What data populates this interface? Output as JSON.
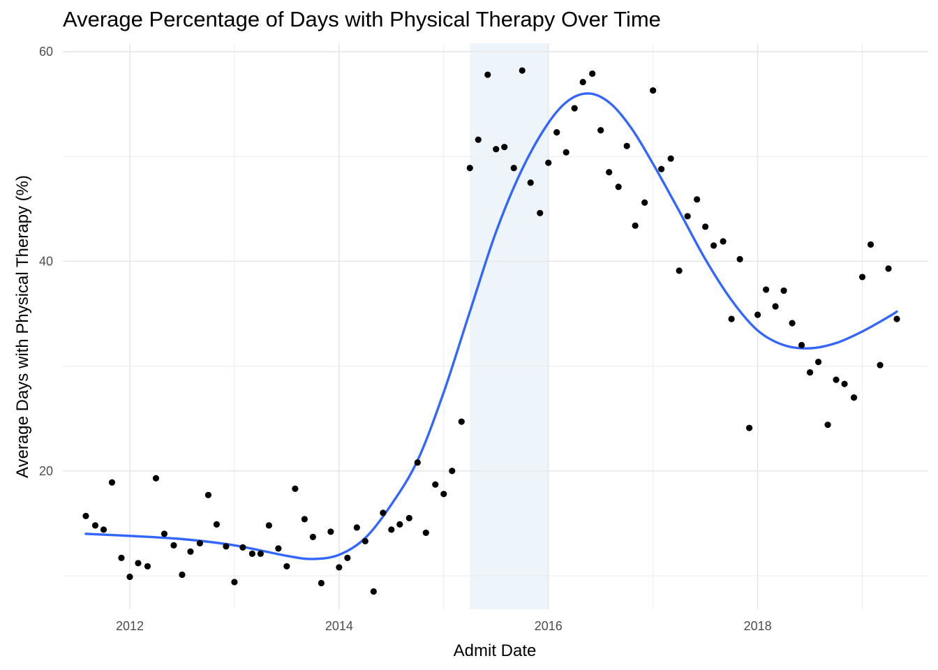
{
  "chart_data": {
    "type": "scatter",
    "title": "Average Percentage of Days with Physical Therapy Over Time",
    "xlabel": "Admit Date",
    "ylabel": "Average Days with Physical Therapy (%)",
    "xlim": [
      2011.36,
      2019.63
    ],
    "ylim": [
      6.8,
      60.8
    ],
    "x_ticks": [
      2012,
      2014,
      2016,
      2018
    ],
    "y_ticks": [
      20,
      40,
      60
    ],
    "grid": true,
    "legend": "none",
    "highlight_band": {
      "x_start": 2015.25,
      "x_end": 2016.0,
      "color": "#eef5fa"
    },
    "point_color": "#000000",
    "smooth_color": "#3366ff",
    "points": [
      {
        "x": 2011.58,
        "y": 15.7
      },
      {
        "x": 2011.67,
        "y": 14.8
      },
      {
        "x": 2011.75,
        "y": 14.4
      },
      {
        "x": 2011.83,
        "y": 18.9
      },
      {
        "x": 2011.92,
        "y": 11.7
      },
      {
        "x": 2012.0,
        "y": 9.9
      },
      {
        "x": 2012.08,
        "y": 11.2
      },
      {
        "x": 2012.17,
        "y": 10.9
      },
      {
        "x": 2012.25,
        "y": 19.3
      },
      {
        "x": 2012.33,
        "y": 14.0
      },
      {
        "x": 2012.42,
        "y": 12.9
      },
      {
        "x": 2012.5,
        "y": 10.1
      },
      {
        "x": 2012.58,
        "y": 12.3
      },
      {
        "x": 2012.67,
        "y": 13.1
      },
      {
        "x": 2012.75,
        "y": 17.7
      },
      {
        "x": 2012.83,
        "y": 14.9
      },
      {
        "x": 2012.92,
        "y": 12.8
      },
      {
        "x": 2013.0,
        "y": 9.4
      },
      {
        "x": 2013.08,
        "y": 12.7
      },
      {
        "x": 2013.17,
        "y": 12.1
      },
      {
        "x": 2013.25,
        "y": 12.1
      },
      {
        "x": 2013.33,
        "y": 14.8
      },
      {
        "x": 2013.42,
        "y": 12.6
      },
      {
        "x": 2013.5,
        "y": 10.9
      },
      {
        "x": 2013.58,
        "y": 18.3
      },
      {
        "x": 2013.67,
        "y": 15.4
      },
      {
        "x": 2013.75,
        "y": 13.7
      },
      {
        "x": 2013.83,
        "y": 9.3
      },
      {
        "x": 2013.92,
        "y": 14.2
      },
      {
        "x": 2014.0,
        "y": 10.8
      },
      {
        "x": 2014.08,
        "y": 11.7
      },
      {
        "x": 2014.17,
        "y": 14.6
      },
      {
        "x": 2014.25,
        "y": 13.3
      },
      {
        "x": 2014.33,
        "y": 8.5
      },
      {
        "x": 2014.42,
        "y": 16.0
      },
      {
        "x": 2014.5,
        "y": 14.4
      },
      {
        "x": 2014.58,
        "y": 14.9
      },
      {
        "x": 2014.67,
        "y": 15.5
      },
      {
        "x": 2014.75,
        "y": 20.8
      },
      {
        "x": 2014.83,
        "y": 14.1
      },
      {
        "x": 2014.92,
        "y": 18.7
      },
      {
        "x": 2015.0,
        "y": 17.8
      },
      {
        "x": 2015.08,
        "y": 20.0
      },
      {
        "x": 2015.17,
        "y": 24.7
      },
      {
        "x": 2015.25,
        "y": 48.9
      },
      {
        "x": 2015.33,
        "y": 51.6
      },
      {
        "x": 2015.42,
        "y": 57.8
      },
      {
        "x": 2015.5,
        "y": 50.7
      },
      {
        "x": 2015.58,
        "y": 50.9
      },
      {
        "x": 2015.67,
        "y": 48.9
      },
      {
        "x": 2015.75,
        "y": 58.2
      },
      {
        "x": 2015.83,
        "y": 47.5
      },
      {
        "x": 2015.92,
        "y": 44.6
      },
      {
        "x": 2016.0,
        "y": 49.4
      },
      {
        "x": 2016.08,
        "y": 52.3
      },
      {
        "x": 2016.17,
        "y": 50.4
      },
      {
        "x": 2016.25,
        "y": 54.6
      },
      {
        "x": 2016.33,
        "y": 57.1
      },
      {
        "x": 2016.42,
        "y": 57.9
      },
      {
        "x": 2016.5,
        "y": 52.5
      },
      {
        "x": 2016.58,
        "y": 48.5
      },
      {
        "x": 2016.67,
        "y": 47.1
      },
      {
        "x": 2016.75,
        "y": 51.0
      },
      {
        "x": 2016.83,
        "y": 43.4
      },
      {
        "x": 2016.92,
        "y": 45.6
      },
      {
        "x": 2017.0,
        "y": 56.3
      },
      {
        "x": 2017.08,
        "y": 48.8
      },
      {
        "x": 2017.17,
        "y": 49.8
      },
      {
        "x": 2017.25,
        "y": 39.1
      },
      {
        "x": 2017.33,
        "y": 44.3
      },
      {
        "x": 2017.42,
        "y": 45.9
      },
      {
        "x": 2017.5,
        "y": 43.3
      },
      {
        "x": 2017.58,
        "y": 41.5
      },
      {
        "x": 2017.67,
        "y": 41.9
      },
      {
        "x": 2017.75,
        "y": 34.5
      },
      {
        "x": 2017.83,
        "y": 40.2
      },
      {
        "x": 2017.92,
        "y": 24.1
      },
      {
        "x": 2018.0,
        "y": 34.9
      },
      {
        "x": 2018.08,
        "y": 37.3
      },
      {
        "x": 2018.17,
        "y": 35.7
      },
      {
        "x": 2018.25,
        "y": 37.2
      },
      {
        "x": 2018.33,
        "y": 34.1
      },
      {
        "x": 2018.42,
        "y": 32.0
      },
      {
        "x": 2018.5,
        "y": 29.4
      },
      {
        "x": 2018.58,
        "y": 30.4
      },
      {
        "x": 2018.67,
        "y": 24.4
      },
      {
        "x": 2018.75,
        "y": 28.7
      },
      {
        "x": 2018.83,
        "y": 28.3
      },
      {
        "x": 2018.92,
        "y": 27.0
      },
      {
        "x": 2019.0,
        "y": 38.5
      },
      {
        "x": 2019.08,
        "y": 41.6
      },
      {
        "x": 2019.17,
        "y": 30.1
      },
      {
        "x": 2019.25,
        "y": 39.3
      },
      {
        "x": 2019.33,
        "y": 34.5
      }
    ],
    "smooth_line": [
      {
        "x": 2011.58,
        "y": 14.0
      },
      {
        "x": 2012.0,
        "y": 13.8
      },
      {
        "x": 2012.5,
        "y": 13.5
      },
      {
        "x": 2013.0,
        "y": 12.9
      },
      {
        "x": 2013.5,
        "y": 11.9
      },
      {
        "x": 2013.75,
        "y": 11.6
      },
      {
        "x": 2014.0,
        "y": 12.0
      },
      {
        "x": 2014.25,
        "y": 13.6
      },
      {
        "x": 2014.5,
        "y": 16.8
      },
      {
        "x": 2014.75,
        "y": 21.0
      },
      {
        "x": 2015.0,
        "y": 27.5
      },
      {
        "x": 2015.25,
        "y": 35.2
      },
      {
        "x": 2015.5,
        "y": 42.8
      },
      {
        "x": 2015.75,
        "y": 48.8
      },
      {
        "x": 2016.0,
        "y": 53.2
      },
      {
        "x": 2016.2,
        "y": 55.4
      },
      {
        "x": 2016.4,
        "y": 56.0
      },
      {
        "x": 2016.6,
        "y": 55.0
      },
      {
        "x": 2016.8,
        "y": 52.6
      },
      {
        "x": 2017.0,
        "y": 49.3
      },
      {
        "x": 2017.25,
        "y": 44.8
      },
      {
        "x": 2017.5,
        "y": 40.2
      },
      {
        "x": 2017.75,
        "y": 36.3
      },
      {
        "x": 2018.0,
        "y": 33.4
      },
      {
        "x": 2018.25,
        "y": 32.0
      },
      {
        "x": 2018.5,
        "y": 31.7
      },
      {
        "x": 2018.75,
        "y": 32.2
      },
      {
        "x": 2019.0,
        "y": 33.3
      },
      {
        "x": 2019.25,
        "y": 34.7
      },
      {
        "x": 2019.33,
        "y": 35.2
      }
    ]
  }
}
